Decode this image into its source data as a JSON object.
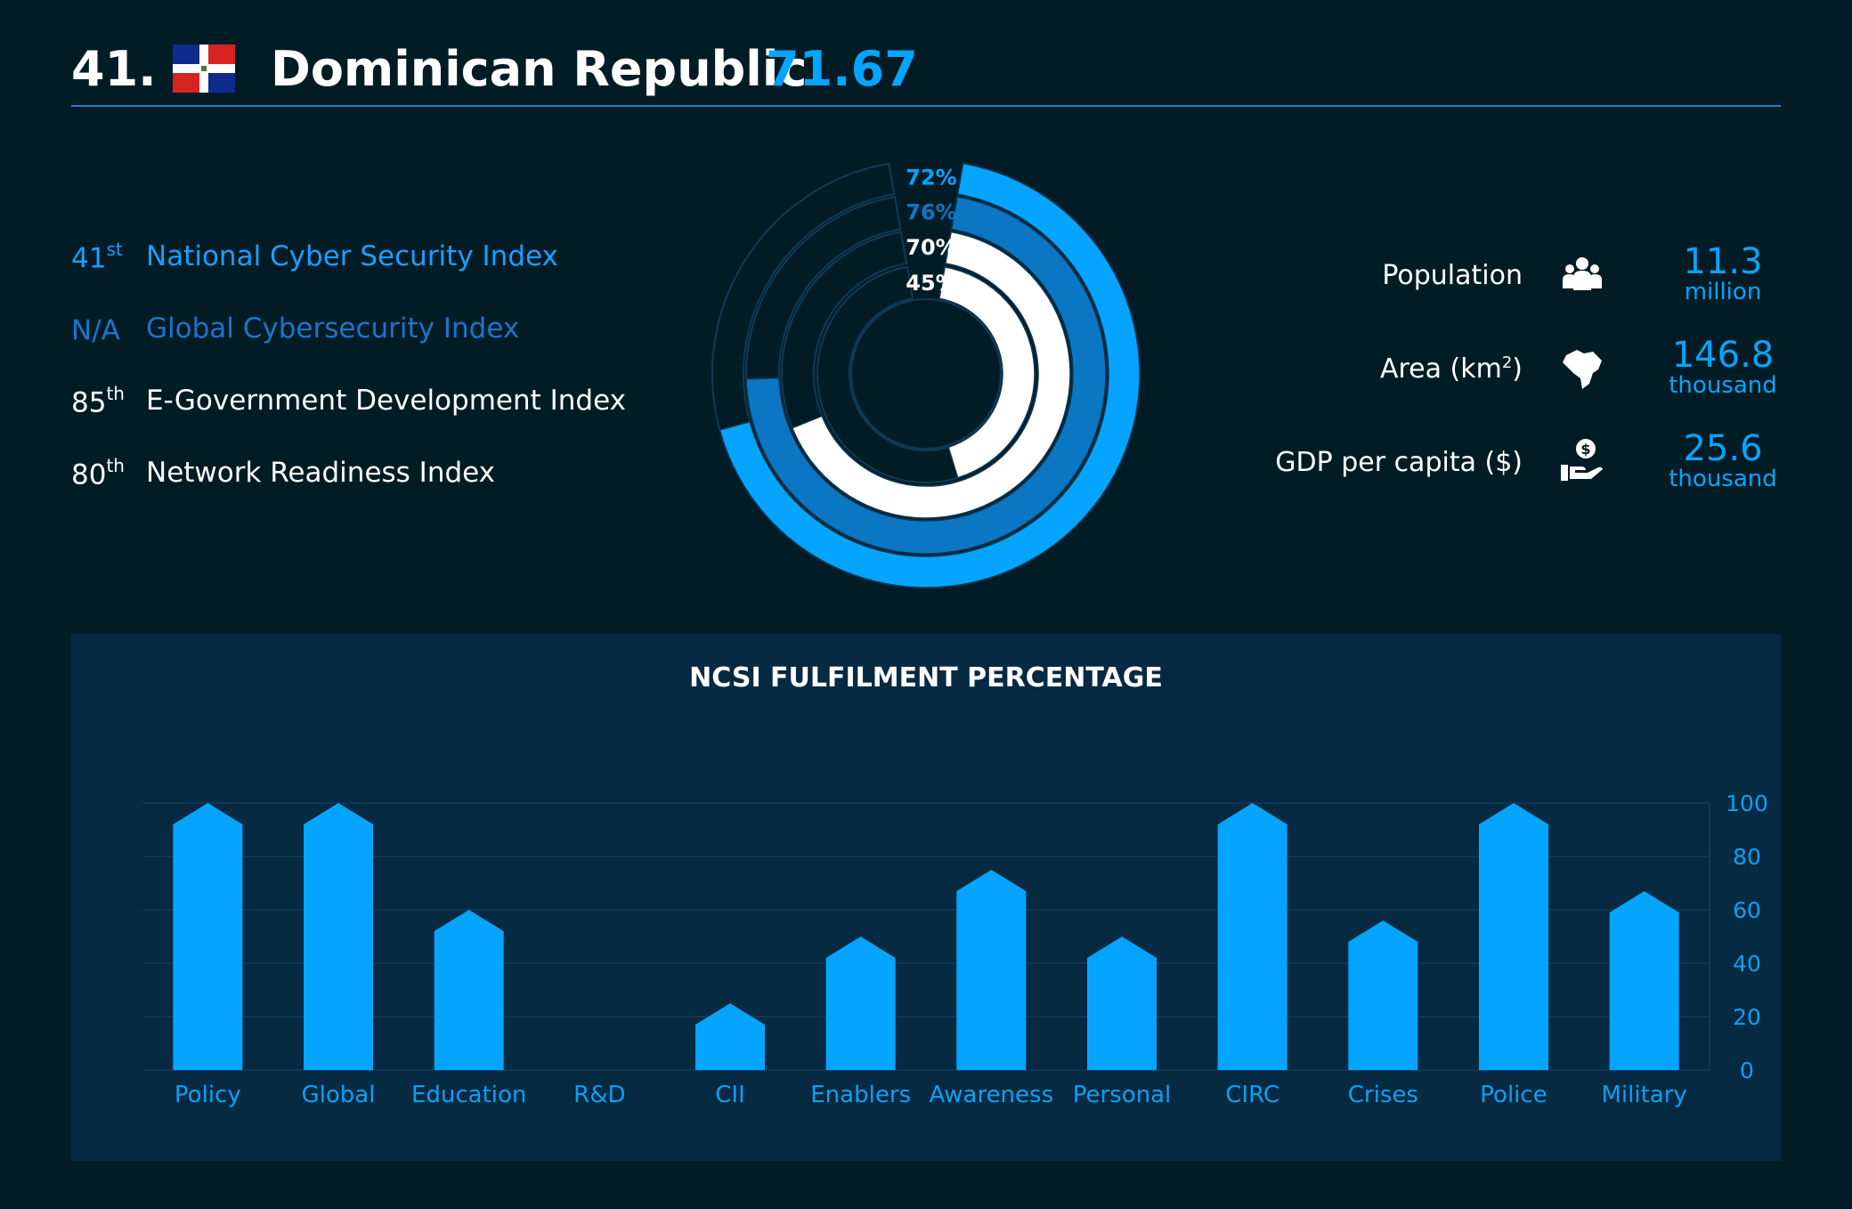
{
  "header": {
    "rank": "41.",
    "country": "Dominican Republic",
    "score": "71.67",
    "flag_icon": "dominican-republic-flag-icon"
  },
  "indices": [
    {
      "rank": "41",
      "suffix": "st",
      "name": "National Cyber Security Index",
      "color": "#1a9fff"
    },
    {
      "rank": "N/A",
      "suffix": "",
      "name": "Global Cybersecurity Index",
      "color": "#1d74c8"
    },
    {
      "rank": "85",
      "suffix": "th",
      "name": "E-Government Development Index",
      "color": "#ffffff"
    },
    {
      "rank": "80",
      "suffix": "th",
      "name": "Network Readiness Index",
      "color": "#ffffff"
    }
  ],
  "donut": {
    "rings": [
      {
        "label": "72%",
        "value": 72,
        "color": "#05a5ff"
      },
      {
        "label": "76%",
        "value": 76,
        "color": "#0b77c4"
      },
      {
        "label": "70%",
        "value": 70,
        "color": "#ffffff"
      },
      {
        "label": "45%",
        "value": 45,
        "color": "#ffffff"
      }
    ]
  },
  "stats": [
    {
      "label": "Population",
      "label_sup": "",
      "label_tail": "",
      "icon": "people-icon",
      "value": "11.3",
      "unit": "million"
    },
    {
      "label": "Area (km",
      "label_sup": "2",
      "label_tail": ")",
      "icon": "map-icon",
      "value": "146.8",
      "unit": "thousand"
    },
    {
      "label": "GDP per capita ($)",
      "label_sup": "",
      "label_tail": "",
      "icon": "money-hand-icon",
      "value": "25.6",
      "unit": "thousand"
    }
  ],
  "chart_data": {
    "type": "bar",
    "title": "NCSI FULFILMENT PERCENTAGE",
    "categories": [
      "Policy",
      "Global",
      "Education",
      "R&D",
      "CII",
      "Enablers",
      "Awareness",
      "Personal",
      "CIRC",
      "Crises",
      "Police",
      "Military"
    ],
    "values": [
      100,
      100,
      60,
      0,
      25,
      50,
      75,
      50,
      100,
      56,
      100,
      67
    ],
    "ylim": [
      0,
      100
    ],
    "yticks": [
      0,
      20,
      40,
      60,
      80,
      100
    ],
    "grid": true,
    "y_axis_side": "right",
    "bar_color": "#05a5ff"
  }
}
